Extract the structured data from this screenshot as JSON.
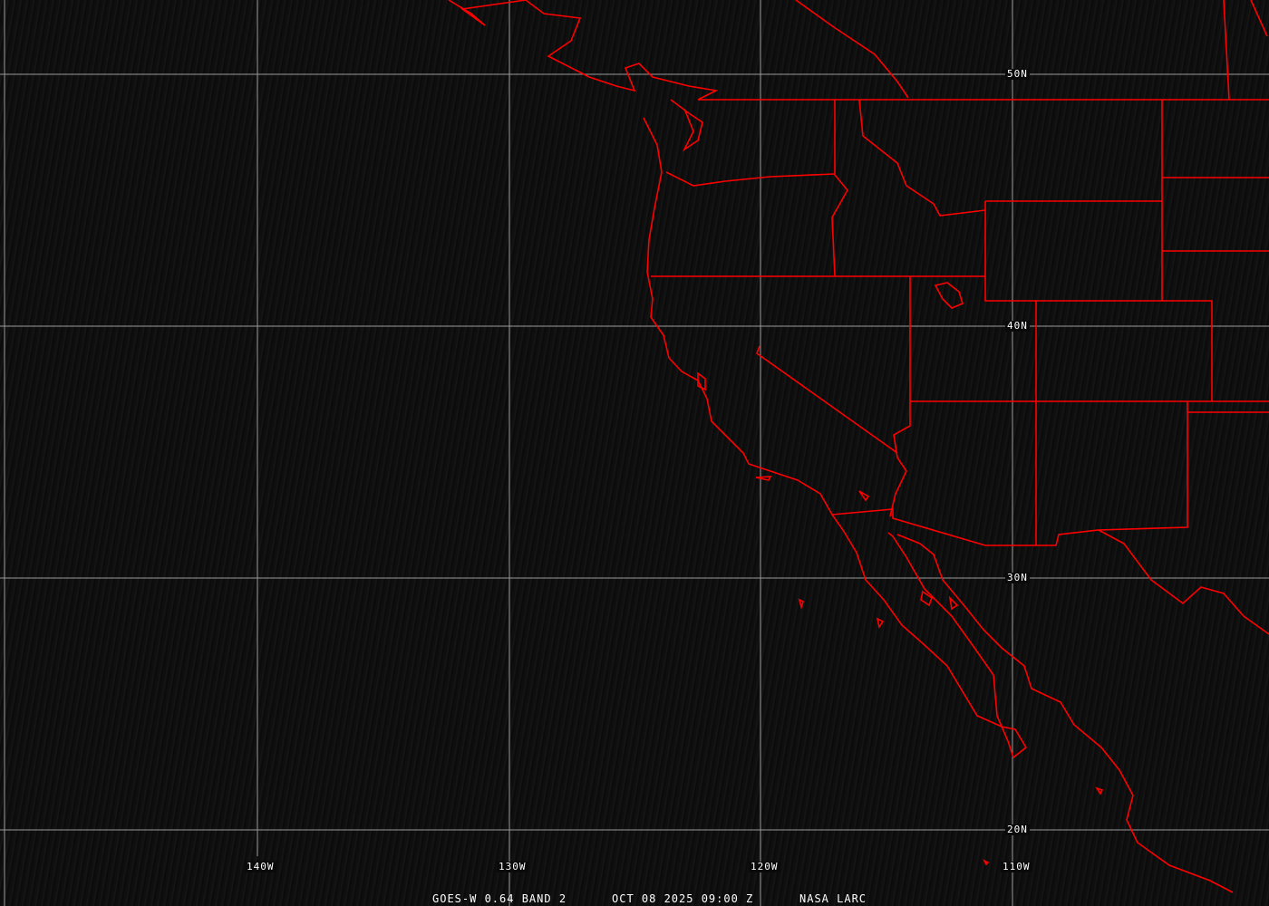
{
  "caption": {
    "sensor": "GOES-W 0.64 BAND 2",
    "datetime": "OCT 08 2025 09:00 Z",
    "credit": "NASA LARC"
  },
  "grid": {
    "longitudes": [
      "140W",
      "130W",
      "120W",
      "110W"
    ],
    "latitudes": [
      "50N",
      "40N",
      "30N",
      "20N"
    ]
  },
  "colors": {
    "boundaries": "#ff0000",
    "grid": "#9a9a9a",
    "background": "#0a0a0a",
    "text": "#ffffff"
  }
}
